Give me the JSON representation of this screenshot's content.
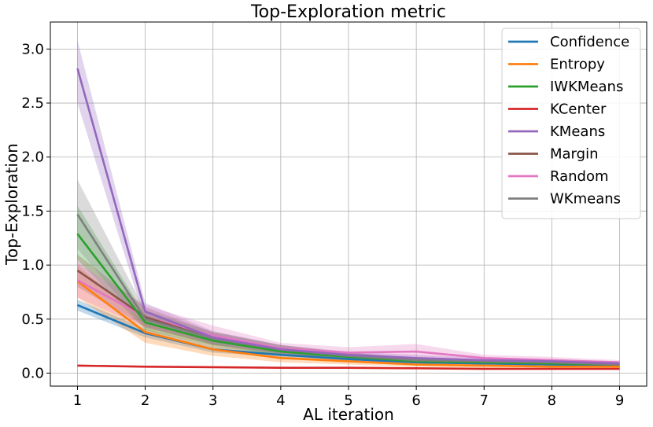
{
  "chart_data": {
    "type": "line",
    "title": "Top-Exploration metric",
    "xlabel": "AL iteration",
    "ylabel": "Top-Exploration",
    "x": [
      1,
      2,
      3,
      4,
      5,
      6,
      7,
      8,
      9
    ],
    "xlim": [
      0.6,
      9.4
    ],
    "ylim": [
      -0.12,
      3.25
    ],
    "xticks": [
      "1",
      "2",
      "3",
      "4",
      "5",
      "6",
      "7",
      "8",
      "9"
    ],
    "yticks": [
      "0.0",
      "0.5",
      "1.0",
      "1.5",
      "2.0",
      "2.5",
      "3.0"
    ],
    "grid": true,
    "legend_position": "top-right",
    "series": [
      {
        "name": "Confidence",
        "color": "#1f77b4",
        "values": [
          0.63,
          0.37,
          0.22,
          0.17,
          0.13,
          0.1,
          0.09,
          0.08,
          0.07
        ],
        "lower": [
          0.58,
          0.33,
          0.19,
          0.15,
          0.11,
          0.09,
          0.08,
          0.07,
          0.06
        ],
        "upper": [
          0.68,
          0.41,
          0.25,
          0.19,
          0.15,
          0.11,
          0.1,
          0.09,
          0.08
        ]
      },
      {
        "name": "Entropy",
        "color": "#ff7f0e",
        "values": [
          0.85,
          0.38,
          0.22,
          0.14,
          0.11,
          0.08,
          0.07,
          0.06,
          0.06
        ],
        "lower": [
          0.7,
          0.28,
          0.16,
          0.1,
          0.08,
          0.06,
          0.05,
          0.05,
          0.05
        ],
        "upper": [
          1.0,
          0.47,
          0.28,
          0.18,
          0.14,
          0.1,
          0.09,
          0.08,
          0.07
        ]
      },
      {
        "name": "IWKMeans",
        "color": "#2ca02c",
        "values": [
          1.29,
          0.47,
          0.3,
          0.2,
          0.15,
          0.11,
          0.1,
          0.09,
          0.08
        ],
        "lower": [
          1.05,
          0.4,
          0.25,
          0.17,
          0.13,
          0.09,
          0.08,
          0.07,
          0.07
        ],
        "upper": [
          1.55,
          0.54,
          0.35,
          0.23,
          0.17,
          0.13,
          0.12,
          0.11,
          0.09
        ]
      },
      {
        "name": "KCenter",
        "color": "#d62728",
        "values": [
          0.07,
          0.06,
          0.055,
          0.05,
          0.05,
          0.045,
          0.04,
          0.04,
          0.04
        ],
        "lower": [
          0.06,
          0.055,
          0.05,
          0.045,
          0.045,
          0.04,
          0.035,
          0.035,
          0.035
        ],
        "upper": [
          0.08,
          0.065,
          0.06,
          0.055,
          0.055,
          0.05,
          0.045,
          0.045,
          0.045
        ]
      },
      {
        "name": "KMeans",
        "color": "#9467bd",
        "values": [
          2.82,
          0.57,
          0.33,
          0.22,
          0.17,
          0.14,
          0.12,
          0.11,
          0.09
        ],
        "lower": [
          2.5,
          0.48,
          0.27,
          0.18,
          0.14,
          0.11,
          0.1,
          0.09,
          0.08
        ],
        "upper": [
          3.08,
          0.65,
          0.39,
          0.26,
          0.2,
          0.17,
          0.14,
          0.13,
          0.11
        ]
      },
      {
        "name": "Margin",
        "color": "#8c564b",
        "values": [
          0.95,
          0.52,
          0.32,
          0.22,
          0.16,
          0.12,
          0.1,
          0.09,
          0.08
        ],
        "lower": [
          0.8,
          0.43,
          0.26,
          0.18,
          0.13,
          0.1,
          0.08,
          0.07,
          0.06
        ],
        "upper": [
          1.1,
          0.61,
          0.38,
          0.26,
          0.19,
          0.14,
          0.12,
          0.11,
          0.1
        ]
      },
      {
        "name": "Random",
        "color": "#e377c2",
        "values": [
          0.86,
          0.52,
          0.35,
          0.23,
          0.19,
          0.2,
          0.14,
          0.12,
          0.1
        ],
        "lower": [
          0.7,
          0.42,
          0.28,
          0.18,
          0.15,
          0.14,
          0.11,
          0.1,
          0.08
        ],
        "upper": [
          1.02,
          0.63,
          0.44,
          0.28,
          0.24,
          0.27,
          0.17,
          0.15,
          0.12
        ]
      },
      {
        "name": "WKmeans",
        "color": "#7f7f7f",
        "values": [
          1.47,
          0.5,
          0.32,
          0.22,
          0.16,
          0.12,
          0.11,
          0.1,
          0.08
        ],
        "lower": [
          1.15,
          0.42,
          0.26,
          0.18,
          0.13,
          0.1,
          0.09,
          0.08,
          0.07
        ],
        "upper": [
          1.79,
          0.58,
          0.38,
          0.26,
          0.19,
          0.14,
          0.13,
          0.12,
          0.09
        ]
      }
    ]
  }
}
